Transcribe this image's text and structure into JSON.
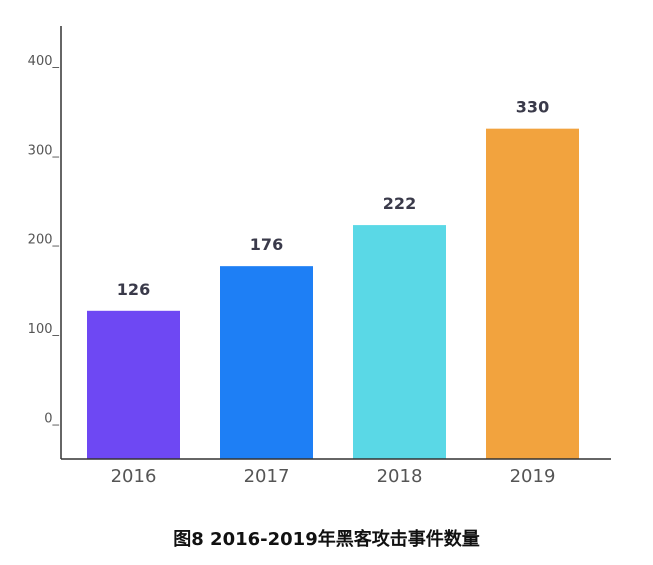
{
  "caption": "图8 2016-2019年黑客攻击事件数量",
  "chart_data": {
    "type": "bar",
    "title": "图8 2016-2019年黑客攻击事件数量",
    "categories": [
      "2016",
      "2017",
      "2018",
      "2019"
    ],
    "values": [
      126,
      176,
      222,
      330
    ],
    "value_labels": [
      "126",
      "176",
      "222",
      "330"
    ],
    "colors": [
      "#6e48f3",
      "#1e7ff5",
      "#5ad8e6",
      "#f2a33e"
    ],
    "yticks": [
      0,
      100,
      200,
      300,
      400
    ],
    "ytick_labels": [
      "0_",
      "100_",
      "200_",
      "300_",
      "400_"
    ],
    "ylim": [
      -40,
      445
    ],
    "xlabel": "",
    "ylabel": "",
    "grid": false,
    "legend": "none"
  }
}
